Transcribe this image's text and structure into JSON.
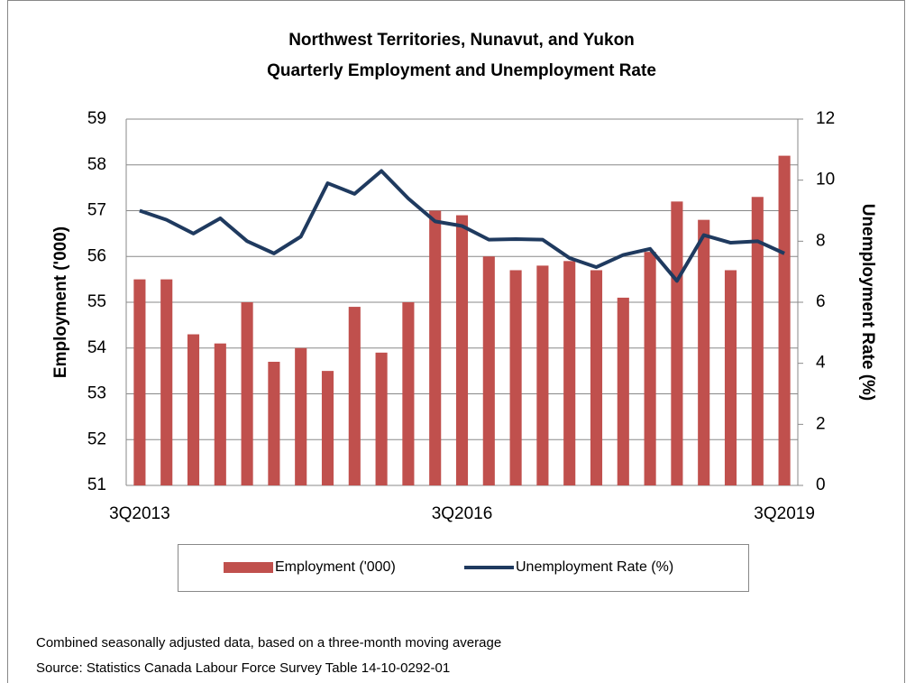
{
  "chart_data": {
    "type": "bar_line",
    "title": "Northwest Territories, Nunavut, and Yukon",
    "subtitle": "Quarterly Employment and Unemployment Rate",
    "y_label": "Employment ('000)",
    "y2_label": "Unemployment Rate (%)",
    "categories": [
      "3Q2013",
      null,
      null,
      null,
      null,
      null,
      null,
      null,
      null,
      null,
      null,
      null,
      "3Q2016",
      null,
      null,
      null,
      null,
      null,
      null,
      null,
      null,
      null,
      null,
      null,
      "3Q2019"
    ],
    "series": [
      {
        "name": "Employment ('000)",
        "type": "bar",
        "color": "#c0504d",
        "values": [
          55.5,
          55.5,
          54.3,
          54.1,
          55.0,
          53.7,
          54.0,
          53.5,
          54.9,
          53.9,
          55.0,
          57.0,
          56.9,
          56.0,
          55.7,
          55.8,
          55.9,
          55.7,
          55.1,
          56.1,
          57.2,
          56.8,
          55.7,
          57.3,
          58.2
        ]
      },
      {
        "name": "Unemployment Rate (%)",
        "type": "line",
        "axis": "y2",
        "color": "#1f3a5f",
        "values": [
          9.0,
          8.7,
          8.25,
          8.75,
          8.0,
          7.6,
          8.15,
          9.9,
          9.55,
          10.3,
          9.4,
          8.65,
          8.5,
          8.05,
          8.07,
          8.05,
          7.45,
          7.15,
          7.55,
          7.75,
          6.7,
          8.2,
          7.95,
          8.0,
          7.6
        ]
      }
    ],
    "ylim": [
      51,
      59
    ],
    "yticks": [
      51,
      52,
      53,
      54,
      55,
      56,
      57,
      58,
      59
    ],
    "y2lim": [
      0,
      12
    ],
    "y2ticks": [
      0,
      2,
      4,
      6,
      8,
      10,
      12
    ],
    "grid": true,
    "legend": "bottom",
    "notes": [
      "Combined seasonally adjusted data, based on a three-month moving average",
      "Source: Statistics Canada Labour Force Survey Table 14-10-0292-01"
    ]
  }
}
